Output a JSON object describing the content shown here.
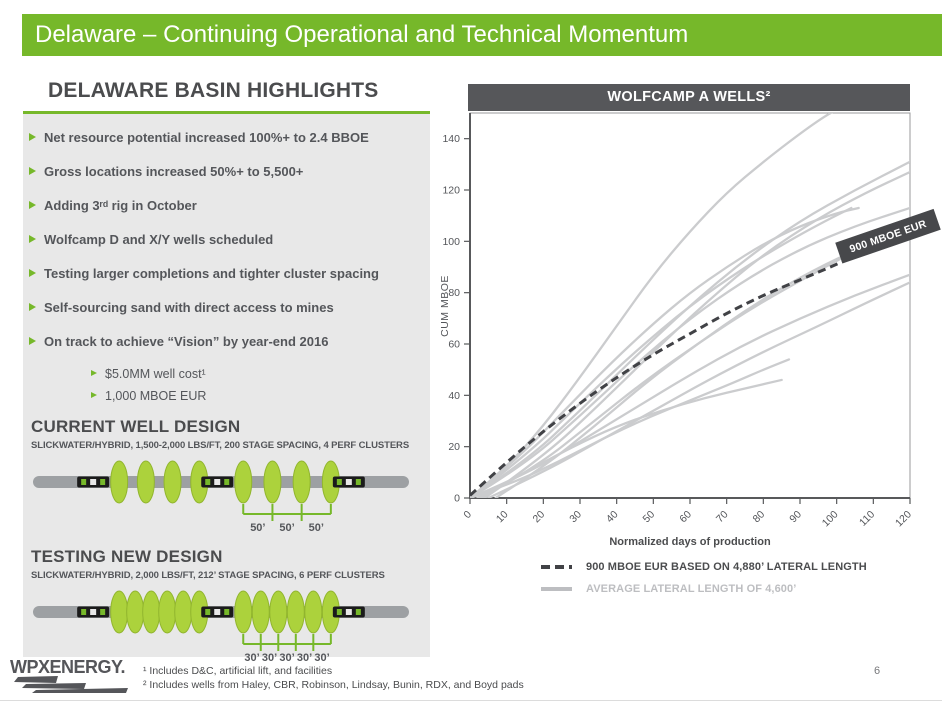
{
  "slide": {
    "title": "Delaware – Continuing Operational and Technical Momentum",
    "page_number": "6"
  },
  "highlights": {
    "heading": "DELAWARE BASIN HIGHLIGHTS",
    "bullets": [
      {
        "text": "Net resource potential increased 100%+ to 2.4 BBOE"
      },
      {
        "text": "Gross locations increased 50%+ to 5,500+"
      },
      {
        "text": "Adding 3ʳᵈ rig in October"
      },
      {
        "text": "Wolfcamp D and X/Y wells scheduled"
      },
      {
        "text": "Testing larger completions and tighter cluster spacing"
      },
      {
        "text": "Self-sourcing sand with direct access to mines"
      },
      {
        "text": "On track to achieve “Vision” by year-end 2016",
        "subs": [
          "$5.0MM well cost¹",
          "1,000 MBOE EUR"
        ]
      }
    ]
  },
  "current_design": {
    "heading": "CURRENT WELL DESIGN",
    "subheading": "SLICKWATER/HYBRID, 1,500-2,000 LBS/FT, 200 STAGE SPACING, 4 PERF CLUSTERS",
    "clusters_per_stage": 4,
    "spacing_labels": [
      "50’",
      "50’",
      "50’"
    ]
  },
  "new_design": {
    "heading": "TESTING NEW DESIGN",
    "subheading": "SLICKWATER/HYBRID, 2,000 LBS/FT, 212’ STAGE SPACING, 6 PERF CLUSTERS",
    "clusters_per_stage": 6,
    "spacing_labels": [
      "30’",
      "30’",
      "30’",
      "30’",
      "30’"
    ]
  },
  "chart_data": {
    "type": "line",
    "title": "WOLFCAMP A WELLS²",
    "xlabel": "Normalized days of production",
    "ylabel": "CUM MBOE",
    "xlim": [
      0,
      120
    ],
    "ylim": [
      0,
      150
    ],
    "xticks": [
      0,
      10,
      20,
      30,
      40,
      50,
      60,
      70,
      80,
      90,
      100,
      110,
      120
    ],
    "yticks": [
      0,
      20,
      40,
      60,
      80,
      100,
      120,
      140
    ],
    "grid": false,
    "legend_position": "bottom",
    "annotation": {
      "text": "900 MBOE EUR",
      "x": 114,
      "y": 102,
      "rotation": -19
    },
    "type_curve": {
      "name": "900 MBOE EUR based on 4,880’ lateral length",
      "style": "dashed",
      "points": [
        [
          0,
          1
        ],
        [
          10,
          14
        ],
        [
          20,
          26
        ],
        [
          30,
          37
        ],
        [
          40,
          47
        ],
        [
          50,
          56
        ],
        [
          60,
          64
        ],
        [
          70,
          72
        ],
        [
          80,
          79
        ],
        [
          90,
          85
        ],
        [
          100,
          91
        ],
        [
          106,
          95
        ]
      ]
    },
    "wells": [
      [
        [
          0,
          0
        ],
        [
          10,
          12
        ],
        [
          20,
          28
        ],
        [
          30,
          47
        ],
        [
          40,
          67
        ],
        [
          50,
          87
        ],
        [
          60,
          104
        ],
        [
          70,
          119
        ],
        [
          80,
          131
        ],
        [
          90,
          142
        ],
        [
          97,
          149
        ],
        [
          101,
          152
        ]
      ],
      [
        [
          0,
          0
        ],
        [
          15,
          14
        ],
        [
          30,
          34
        ],
        [
          45,
          55
        ],
        [
          60,
          75
        ],
        [
          75,
          93
        ],
        [
          90,
          108
        ],
        [
          105,
          120
        ],
        [
          120,
          131
        ]
      ],
      [
        [
          4,
          0
        ],
        [
          20,
          16
        ],
        [
          35,
          36
        ],
        [
          50,
          57
        ],
        [
          65,
          77
        ],
        [
          80,
          95
        ],
        [
          95,
          109
        ],
        [
          108,
          119
        ],
        [
          120,
          127
        ]
      ],
      [
        [
          0,
          0
        ],
        [
          15,
          16
        ],
        [
          30,
          37
        ],
        [
          45,
          57
        ],
        [
          60,
          75
        ],
        [
          75,
          90
        ],
        [
          88,
          101
        ],
        [
          97,
          108
        ],
        [
          104,
          113
        ]
      ],
      [
        [
          0,
          0
        ],
        [
          12,
          14
        ],
        [
          25,
          33
        ],
        [
          38,
          52
        ],
        [
          50,
          68
        ],
        [
          60,
          80
        ],
        [
          70,
          90
        ],
        [
          80,
          99
        ],
        [
          90,
          106
        ],
        [
          100,
          111
        ],
        [
          106,
          113
        ]
      ],
      [
        [
          0,
          0
        ],
        [
          15,
          13
        ],
        [
          30,
          32
        ],
        [
          45,
          52
        ],
        [
          60,
          70
        ],
        [
          75,
          85
        ],
        [
          90,
          97
        ],
        [
          105,
          106
        ],
        [
          120,
          113
        ]
      ],
      [
        [
          3,
          0
        ],
        [
          18,
          12
        ],
        [
          33,
          29
        ],
        [
          48,
          46
        ],
        [
          63,
          61
        ],
        [
          78,
          75
        ],
        [
          93,
          87
        ],
        [
          106,
          97
        ],
        [
          120,
          107
        ]
      ],
      [
        [
          7,
          0
        ],
        [
          20,
          12
        ],
        [
          34,
          28
        ],
        [
          48,
          45
        ],
        [
          62,
          60
        ],
        [
          76,
          74
        ],
        [
          90,
          86
        ],
        [
          104,
          96
        ],
        [
          118,
          104
        ]
      ],
      [
        [
          0,
          0
        ],
        [
          15,
          9
        ],
        [
          30,
          22
        ],
        [
          45,
          35
        ],
        [
          60,
          48
        ],
        [
          75,
          60
        ],
        [
          90,
          70
        ],
        [
          105,
          79
        ],
        [
          120,
          87
        ]
      ],
      [
        [
          5,
          0
        ],
        [
          20,
          10
        ],
        [
          35,
          22
        ],
        [
          50,
          34
        ],
        [
          65,
          46
        ],
        [
          80,
          57
        ],
        [
          95,
          67
        ],
        [
          108,
          76
        ],
        [
          120,
          84
        ]
      ],
      [
        [
          0,
          0
        ],
        [
          12,
          6
        ],
        [
          24,
          14
        ],
        [
          36,
          23
        ],
        [
          48,
          31
        ],
        [
          60,
          38
        ],
        [
          72,
          45
        ],
        [
          80,
          50
        ],
        [
          87,
          54
        ]
      ],
      [
        [
          2,
          0
        ],
        [
          15,
          10
        ],
        [
          28,
          20
        ],
        [
          40,
          28
        ],
        [
          52,
          34
        ],
        [
          64,
          39
        ],
        [
          76,
          43
        ],
        [
          85,
          46
        ]
      ]
    ],
    "legend": [
      {
        "style": "dashed",
        "label": "900 MBOE EUR BASED ON 4,880’ LATERAL LENGTH"
      },
      {
        "style": "solid",
        "label": "AVERAGE LATERAL LENGTH OF 4,600’"
      }
    ]
  },
  "footer": {
    "logo_text": "WPXENERGY.",
    "footnotes": [
      "¹ Includes D&C, artificial lift, and facilities",
      "² Includes wells from Haley, CBR, Robinson, Lindsay, Bunin, RDX, and Boyd pads"
    ]
  },
  "colors": {
    "green": "#76B82A",
    "panel_gray": "#E8E8E8",
    "dark_text": "#4B4C4E",
    "chart_header_bg": "#56575A",
    "well_curve_gray": "#CBCCCE",
    "type_curve_dark": "#414246",
    "legend_gray": "#BDBEC1",
    "pipe_gray": "#9DA0A3",
    "perf_cluster_green": "#ACD23C"
  }
}
